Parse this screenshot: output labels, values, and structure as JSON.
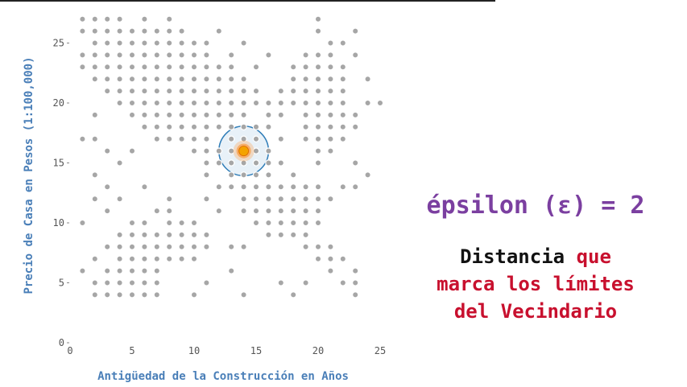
{
  "chart_data": {
    "type": "scatter",
    "xlabel": "Antigüedad de la Construcción en Años",
    "ylabel": "Precio de Casa en Pesos (1:100,000)",
    "xlim": [
      0,
      25
    ],
    "ylim": [
      0,
      27
    ],
    "xticks": [
      "0",
      "5",
      "10",
      "15",
      "20",
      "25"
    ],
    "yticks": [
      "0",
      "5",
      "10",
      "15",
      "20",
      "25"
    ],
    "grid": false,
    "rows": [
      {
        "y": 27,
        "x": [
          1,
          2,
          3,
          4,
          6,
          8,
          20
        ]
      },
      {
        "y": 26,
        "x": [
          1,
          2,
          3,
          4,
          5,
          6,
          7,
          8,
          9,
          12,
          20,
          23
        ]
      },
      {
        "y": 25,
        "x": [
          2,
          3,
          4,
          5,
          6,
          7,
          8,
          9,
          10,
          11,
          14,
          21,
          22
        ]
      },
      {
        "y": 24,
        "x": [
          1,
          2,
          3,
          4,
          5,
          6,
          7,
          8,
          9,
          10,
          11,
          13,
          16,
          19,
          20,
          21,
          23
        ]
      },
      {
        "y": 23,
        "x": [
          1,
          2,
          3,
          4,
          5,
          6,
          7,
          8,
          9,
          10,
          11,
          12,
          13,
          15,
          18,
          19,
          20,
          21,
          22
        ]
      },
      {
        "y": 22,
        "x": [
          2,
          3,
          4,
          5,
          6,
          7,
          8,
          9,
          10,
          11,
          12,
          13,
          14,
          18,
          19,
          20,
          21,
          22,
          24
        ]
      },
      {
        "y": 21,
        "x": [
          3,
          4,
          5,
          6,
          7,
          8,
          9,
          10,
          11,
          12,
          13,
          14,
          15,
          17,
          18,
          19,
          20,
          21,
          22
        ]
      },
      {
        "y": 20,
        "x": [
          4,
          5,
          6,
          7,
          8,
          9,
          10,
          11,
          12,
          13,
          14,
          15,
          16,
          17,
          18,
          19,
          20,
          21,
          22,
          24,
          25
        ]
      },
      {
        "y": 19,
        "x": [
          2,
          5,
          6,
          7,
          8,
          9,
          10,
          11,
          12,
          13,
          14,
          16,
          17,
          19,
          20,
          21,
          22,
          23
        ]
      },
      {
        "y": 18,
        "x": [
          6,
          7,
          8,
          9,
          10,
          11,
          12,
          13,
          14,
          15,
          16,
          19,
          20,
          21,
          22,
          23
        ]
      },
      {
        "y": 17,
        "x": [
          1,
          2,
          7,
          8,
          9,
          10,
          11,
          13,
          14,
          15,
          17,
          19,
          20,
          21,
          22
        ]
      },
      {
        "y": 16,
        "x": [
          3,
          5,
          10,
          11,
          12,
          13,
          14,
          15,
          16,
          20,
          21
        ]
      },
      {
        "y": 15,
        "x": [
          4,
          11,
          12,
          13,
          14,
          15,
          16,
          17,
          20,
          23
        ]
      },
      {
        "y": 14,
        "x": [
          2,
          11,
          13,
          14,
          15,
          16,
          18,
          24
        ]
      },
      {
        "y": 13,
        "x": [
          3,
          6,
          12,
          13,
          14,
          15,
          16,
          17,
          18,
          19,
          20,
          22,
          23
        ]
      },
      {
        "y": 12,
        "x": [
          2,
          4,
          8,
          11,
          14,
          15,
          16,
          17,
          18,
          19,
          20,
          21
        ]
      },
      {
        "y": 11,
        "x": [
          3,
          7,
          8,
          12,
          14,
          15,
          16,
          17,
          18,
          19,
          20
        ]
      },
      {
        "y": 10,
        "x": [
          1,
          5,
          6,
          8,
          9,
          10,
          15,
          16,
          17,
          18,
          19,
          20
        ]
      },
      {
        "y": 9,
        "x": [
          4,
          5,
          6,
          7,
          8,
          9,
          10,
          11,
          16,
          17,
          18,
          19
        ]
      },
      {
        "y": 8,
        "x": [
          3,
          4,
          5,
          6,
          7,
          8,
          9,
          10,
          11,
          13,
          14,
          19,
          20,
          21
        ]
      },
      {
        "y": 7,
        "x": [
          2,
          4,
          5,
          6,
          7,
          8,
          9,
          10,
          20,
          21,
          22
        ]
      },
      {
        "y": 6,
        "x": [
          1,
          3,
          4,
          5,
          6,
          7,
          13,
          21,
          23
        ]
      },
      {
        "y": 5,
        "x": [
          2,
          3,
          4,
          5,
          6,
          7,
          11,
          17,
          19,
          22,
          23
        ]
      },
      {
        "y": 4,
        "x": [
          2,
          3,
          4,
          5,
          6,
          7,
          10,
          14,
          18,
          23
        ]
      }
    ],
    "core_point": {
      "x": 14,
      "y": 16
    },
    "epsilon_radius": 2,
    "colors": {
      "points": "#a6a6a6",
      "circle_fill": "#e4eef7",
      "circle_stroke": "#2f7db8",
      "core_outer": "#ff8a1e",
      "core_inner": "#f4a300"
    }
  },
  "panel": {
    "epsilon_title": "épsilon (ε) = 2",
    "line1_black": "Distancia ",
    "line1_red": "que",
    "line2": "marca los límites",
    "line3": "del Vecindario"
  }
}
